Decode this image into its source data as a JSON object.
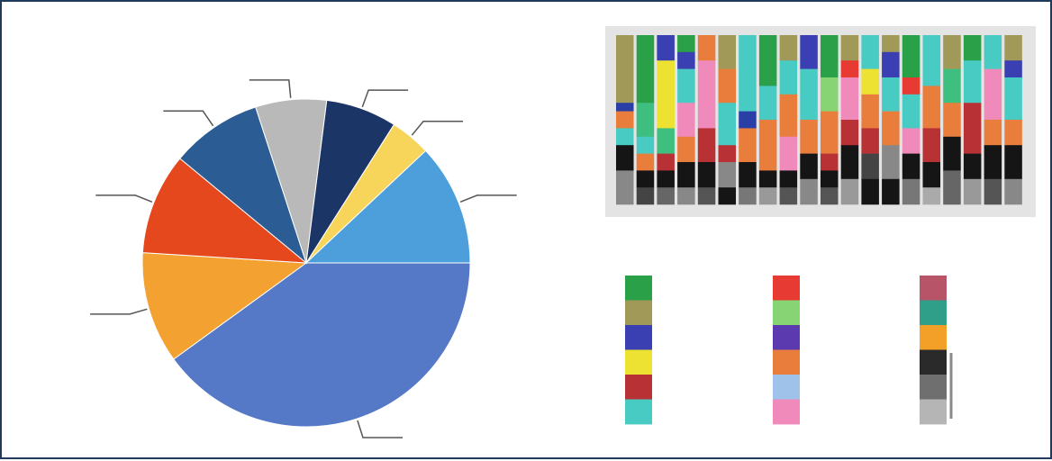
{
  "chart_data": [
    {
      "type": "pie",
      "title": "",
      "slices": [
        {
          "value": 40,
          "color": "#5579c6"
        },
        {
          "value": 11,
          "color": "#f3a231"
        },
        {
          "value": 10,
          "color": "#e5481c"
        },
        {
          "value": 9,
          "color": "#2c5c94"
        },
        {
          "value": 7,
          "color": "#b9b9b9"
        },
        {
          "value": 7,
          "color": "#1b3566"
        },
        {
          "value": 4,
          "color": "#f7d55a"
        },
        {
          "value": 12,
          "color": "#4d9fdc"
        }
      ]
    },
    {
      "type": "bar",
      "stacked": true,
      "normalized": true,
      "title": "",
      "columns": [
        [
          [
            "#a09957",
            0.4
          ],
          [
            "#2a3fa5",
            0.05
          ],
          [
            "#e97d3c",
            0.1
          ],
          [
            "#47cbc2",
            0.1
          ],
          [
            "#151515",
            0.15
          ],
          [
            "#888888",
            0.2
          ]
        ],
        [
          [
            "#2aa048",
            0.4
          ],
          [
            "#3fbf7f",
            0.2
          ],
          [
            "#47cbc2",
            0.1
          ],
          [
            "#e97d3c",
            0.1
          ],
          [
            "#151515",
            0.1
          ],
          [
            "#444444",
            0.1
          ]
        ],
        [
          [
            "#3a3fb1",
            0.15
          ],
          [
            "#ede132",
            0.4
          ],
          [
            "#3fbf7f",
            0.15
          ],
          [
            "#b83235",
            0.1
          ],
          [
            "#151515",
            0.1
          ],
          [
            "#666666",
            0.1
          ]
        ],
        [
          [
            "#2aa048",
            0.1
          ],
          [
            "#3a3fb1",
            0.1
          ],
          [
            "#47cbc2",
            0.2
          ],
          [
            "#f08abb",
            0.2
          ],
          [
            "#e97d3c",
            0.15
          ],
          [
            "#151515",
            0.15
          ],
          [
            "#888888",
            0.1
          ]
        ],
        [
          [
            "#e97d3c",
            0.15
          ],
          [
            "#f08abb",
            0.4
          ],
          [
            "#b83235",
            0.2
          ],
          [
            "#151515",
            0.15
          ],
          [
            "#555555",
            0.1
          ]
        ],
        [
          [
            "#a09957",
            0.2
          ],
          [
            "#e97d3c",
            0.2
          ],
          [
            "#47cbc2",
            0.25
          ],
          [
            "#b83235",
            0.1
          ],
          [
            "#888888",
            0.15
          ],
          [
            "#151515",
            0.1
          ]
        ],
        [
          [
            "#47cbc2",
            0.45
          ],
          [
            "#2a3fa5",
            0.1
          ],
          [
            "#e97d3c",
            0.2
          ],
          [
            "#151515",
            0.15
          ],
          [
            "#777777",
            0.1
          ]
        ],
        [
          [
            "#2aa048",
            0.3
          ],
          [
            "#47cbc2",
            0.2
          ],
          [
            "#e97d3c",
            0.3
          ],
          [
            "#151515",
            0.1
          ],
          [
            "#999999",
            0.1
          ]
        ],
        [
          [
            "#a09957",
            0.15
          ],
          [
            "#47cbc2",
            0.2
          ],
          [
            "#e97d3c",
            0.25
          ],
          [
            "#f08abb",
            0.2
          ],
          [
            "#151515",
            0.1
          ],
          [
            "#555555",
            0.1
          ]
        ],
        [
          [
            "#3a3fb1",
            0.2
          ],
          [
            "#47cbc2",
            0.3
          ],
          [
            "#e97d3c",
            0.2
          ],
          [
            "#151515",
            0.15
          ],
          [
            "#888888",
            0.15
          ]
        ],
        [
          [
            "#2aa048",
            0.25
          ],
          [
            "#87d474",
            0.2
          ],
          [
            "#e97d3c",
            0.25
          ],
          [
            "#b83235",
            0.1
          ],
          [
            "#151515",
            0.1
          ],
          [
            "#555555",
            0.1
          ]
        ],
        [
          [
            "#a09957",
            0.15
          ],
          [
            "#e63a32",
            0.1
          ],
          [
            "#f08abb",
            0.25
          ],
          [
            "#b83235",
            0.15
          ],
          [
            "#151515",
            0.2
          ],
          [
            "#999999",
            0.15
          ]
        ],
        [
          [
            "#47cbc2",
            0.2
          ],
          [
            "#ede132",
            0.15
          ],
          [
            "#e97d3c",
            0.2
          ],
          [
            "#b83235",
            0.15
          ],
          [
            "#444444",
            0.15
          ],
          [
            "#151515",
            0.15
          ]
        ],
        [
          [
            "#a09957",
            0.1
          ],
          [
            "#3a3fb1",
            0.15
          ],
          [
            "#47cbc2",
            0.2
          ],
          [
            "#e97d3c",
            0.2
          ],
          [
            "#888888",
            0.2
          ],
          [
            "#151515",
            0.15
          ]
        ],
        [
          [
            "#2aa048",
            0.25
          ],
          [
            "#e63a32",
            0.1
          ],
          [
            "#47cbc2",
            0.2
          ],
          [
            "#f08abb",
            0.15
          ],
          [
            "#151515",
            0.15
          ],
          [
            "#777777",
            0.15
          ]
        ],
        [
          [
            "#47cbc2",
            0.3
          ],
          [
            "#e97d3c",
            0.25
          ],
          [
            "#b83235",
            0.2
          ],
          [
            "#151515",
            0.15
          ],
          [
            "#aaaaaa",
            0.1
          ]
        ],
        [
          [
            "#a09957",
            0.2
          ],
          [
            "#3fbf7f",
            0.2
          ],
          [
            "#e97d3c",
            0.2
          ],
          [
            "#151515",
            0.2
          ],
          [
            "#666666",
            0.2
          ]
        ],
        [
          [
            "#2aa048",
            0.15
          ],
          [
            "#47cbc2",
            0.25
          ],
          [
            "#b83235",
            0.3
          ],
          [
            "#151515",
            0.15
          ],
          [
            "#999999",
            0.15
          ]
        ],
        [
          [
            "#47cbc2",
            0.2
          ],
          [
            "#f08abb",
            0.3
          ],
          [
            "#e97d3c",
            0.15
          ],
          [
            "#151515",
            0.2
          ],
          [
            "#555555",
            0.15
          ]
        ],
        [
          [
            "#a09957",
            0.15
          ],
          [
            "#3a3fb1",
            0.1
          ],
          [
            "#47cbc2",
            0.25
          ],
          [
            "#e97d3c",
            0.15
          ],
          [
            "#151515",
            0.2
          ],
          [
            "#888888",
            0.15
          ]
        ]
      ]
    },
    {
      "type": "palette",
      "title": "",
      "swatches": [
        "#2aa048",
        "#a09957",
        "#3a3fb1",
        "#ede132",
        "#b83235",
        "#47cbc2"
      ]
    },
    {
      "type": "palette",
      "title": "",
      "swatches": [
        "#e63a32",
        "#87d474",
        "#5b3ab0",
        "#e97d3c",
        "#9fc2ea",
        "#f08abb"
      ]
    },
    {
      "type": "palette",
      "title": "",
      "swatches": [
        "#b85468",
        "#2f9f8a",
        "#f3a028",
        "#2a2a2a",
        "#6f6f6f",
        "#b5b5b5"
      ]
    }
  ]
}
